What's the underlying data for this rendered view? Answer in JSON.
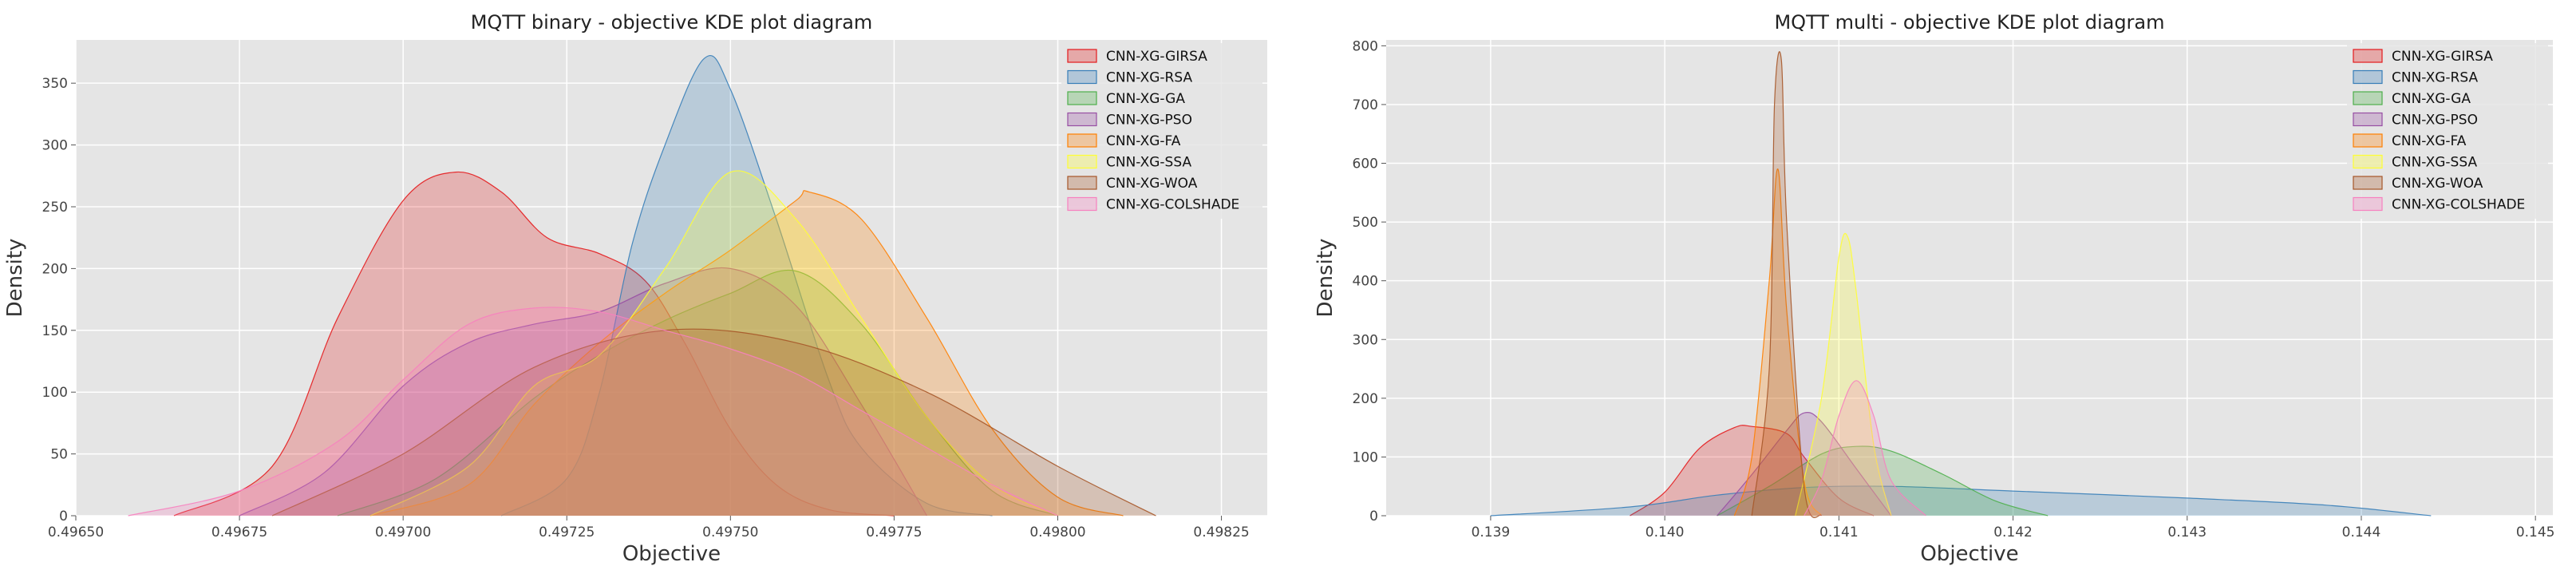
{
  "chart_data": [
    {
      "type": "area",
      "title": "MQTT binary -  objective KDE plot diagram",
      "xlabel": "Objective",
      "ylabel": "Density",
      "xlim": [
        0.4965,
        0.49832
      ],
      "ylim": [
        0,
        385
      ],
      "xticks": [
        0.4965,
        0.49675,
        0.497,
        0.49725,
        0.4975,
        0.49775,
        0.498,
        0.49825
      ],
      "xtick_labels": [
        "0.49650",
        "0.49675",
        "0.49700",
        "0.49725",
        "0.49750",
        "0.49775",
        "0.49800",
        "0.49825"
      ],
      "yticks": [
        0,
        50,
        100,
        150,
        200,
        250,
        300,
        350
      ],
      "ytick_labels": [
        "0",
        "50",
        "100",
        "150",
        "200",
        "250",
        "300",
        "350"
      ],
      "grid": true,
      "legend": "top-right",
      "series": [
        {
          "name": "CNN-XG-GIRSA",
          "color": "#e41a1c",
          "x": [
            0.49665,
            0.4968,
            0.4969,
            0.497,
            0.49708,
            0.49715,
            0.49722,
            0.4973,
            0.49737,
            0.49743,
            0.4975,
            0.49757,
            0.49765,
            0.49775
          ],
          "y": [
            0,
            40,
            160,
            255,
            278,
            262,
            225,
            212,
            190,
            140,
            70,
            25,
            5,
            0
          ]
        },
        {
          "name": "CNN-XG-RSA",
          "color": "#377eb8",
          "x": [
            0.49715,
            0.49725,
            0.4973,
            0.49735,
            0.4974,
            0.49746,
            0.4975,
            0.49757,
            0.49765,
            0.4977,
            0.4978,
            0.4979
          ],
          "y": [
            0,
            30,
            100,
            220,
            300,
            370,
            345,
            240,
            110,
            55,
            10,
            0
          ]
        },
        {
          "name": "CNN-XG-GA",
          "color": "#4daf4a",
          "x": [
            0.4969,
            0.49705,
            0.4972,
            0.4973,
            0.4974,
            0.4975,
            0.4976,
            0.4977,
            0.4978,
            0.4979,
            0.498
          ],
          "y": [
            0,
            30,
            95,
            130,
            158,
            180,
            198,
            155,
            80,
            20,
            0
          ]
        },
        {
          "name": "CNN-XG-PSO",
          "color": "#984ea3",
          "x": [
            0.49675,
            0.49688,
            0.497,
            0.4971,
            0.4972,
            0.4973,
            0.4974,
            0.4975,
            0.4976,
            0.4977,
            0.4978
          ],
          "y": [
            0,
            35,
            105,
            140,
            155,
            165,
            188,
            200,
            170,
            90,
            0
          ]
        },
        {
          "name": "CNN-XG-FA",
          "color": "#ff7f00",
          "x": [
            0.49695,
            0.4971,
            0.4972,
            0.4973,
            0.4974,
            0.4975,
            0.4976,
            0.49762,
            0.4977,
            0.4978,
            0.4979,
            0.498,
            0.4981
          ],
          "y": [
            0,
            25,
            90,
            140,
            180,
            215,
            255,
            262,
            240,
            160,
            70,
            15,
            0
          ]
        },
        {
          "name": "CNN-XG-SSA",
          "color": "#ffff33",
          "x": [
            0.49695,
            0.4971,
            0.4972,
            0.4973,
            0.4974,
            0.4975,
            0.4976,
            0.4977,
            0.4978,
            0.4979,
            0.498
          ],
          "y": [
            0,
            40,
            105,
            130,
            200,
            278,
            240,
            160,
            80,
            25,
            0
          ]
        },
        {
          "name": "CNN-XG-WOA",
          "color": "#a65628",
          "x": [
            0.4968,
            0.497,
            0.4972,
            0.4974,
            0.4976,
            0.4978,
            0.498,
            0.49815
          ],
          "y": [
            0,
            50,
            120,
            150,
            140,
            100,
            40,
            0
          ]
        },
        {
          "name": "CNN-XG-COLSHADE",
          "color": "#f781bf",
          "x": [
            0.49658,
            0.49675,
            0.4969,
            0.497,
            0.4971,
            0.4972,
            0.4973,
            0.4974,
            0.4975,
            0.4976,
            0.4977,
            0.4978,
            0.4979,
            0.498
          ],
          "y": [
            0,
            20,
            60,
            110,
            155,
            168,
            165,
            150,
            135,
            115,
            85,
            55,
            25,
            0
          ]
        }
      ]
    },
    {
      "type": "area",
      "title": "MQTT multi -  objective KDE plot diagram",
      "xlabel": "Objective",
      "ylabel": "Density",
      "xlim": [
        0.1384,
        0.1451
      ],
      "ylim": [
        0,
        810
      ],
      "xticks": [
        0.139,
        0.14,
        0.141,
        0.142,
        0.143,
        0.144,
        0.145
      ],
      "xtick_labels": [
        "0.139",
        "0.140",
        "0.141",
        "0.142",
        "0.143",
        "0.144",
        "0.145"
      ],
      "yticks": [
        0,
        100,
        200,
        300,
        400,
        500,
        600,
        700,
        800
      ],
      "ytick_labels": [
        "0",
        "100",
        "200",
        "300",
        "400",
        "500",
        "600",
        "700",
        "800"
      ],
      "grid": true,
      "legend": "top-right",
      "series": [
        {
          "name": "CNN-XG-GIRSA",
          "color": "#e41a1c",
          "x": [
            0.1398,
            0.14,
            0.1402,
            0.1404,
            0.1405,
            0.1407,
            0.1408,
            0.141,
            0.1412
          ],
          "y": [
            0,
            40,
            115,
            150,
            152,
            140,
            100,
            30,
            0
          ]
        },
        {
          "name": "CNN-XG-RSA",
          "color": "#377eb8",
          "x": [
            0.139,
            0.1398,
            0.1403,
            0.1408,
            0.1413,
            0.142,
            0.143,
            0.1438,
            0.1444
          ],
          "y": [
            0,
            15,
            35,
            48,
            50,
            42,
            30,
            18,
            0
          ]
        },
        {
          "name": "CNN-XG-GA",
          "color": "#4daf4a",
          "x": [
            0.1403,
            0.1406,
            0.1409,
            0.1411,
            0.1413,
            0.1416,
            0.1419,
            0.1422
          ],
          "y": [
            0,
            50,
            105,
            118,
            110,
            70,
            25,
            0
          ]
        },
        {
          "name": "CNN-XG-PSO",
          "color": "#984ea3",
          "x": [
            0.1403,
            0.1405,
            0.1407,
            0.1408,
            0.1409,
            0.1411,
            0.1413
          ],
          "y": [
            0,
            70,
            145,
            175,
            160,
            80,
            0
          ]
        },
        {
          "name": "CNN-XG-FA",
          "color": "#ff7f00",
          "x": [
            0.1404,
            0.1405,
            0.1406,
            0.14065,
            0.1407,
            0.1408,
            0.1409
          ],
          "y": [
            0,
            100,
            400,
            590,
            350,
            60,
            0
          ]
        },
        {
          "name": "CNN-XG-SSA",
          "color": "#ffff33",
          "x": [
            0.14075,
            0.1409,
            0.141,
            0.14105,
            0.1411,
            0.1412,
            0.1413
          ],
          "y": [
            0,
            200,
            440,
            475,
            380,
            120,
            0
          ]
        },
        {
          "name": "CNN-XG-WOA",
          "color": "#a65628",
          "x": [
            0.1405,
            0.1406,
            0.14063,
            0.14067,
            0.1407,
            0.1408,
            0.1409
          ],
          "y": [
            0,
            250,
            700,
            775,
            500,
            50,
            0
          ]
        },
        {
          "name": "CNN-XG-COLSHADE",
          "color": "#f781bf",
          "x": [
            0.1408,
            0.1409,
            0.141,
            0.1411,
            0.1412,
            0.1413,
            0.1415
          ],
          "y": [
            0,
            60,
            170,
            230,
            170,
            60,
            0
          ]
        }
      ]
    }
  ]
}
